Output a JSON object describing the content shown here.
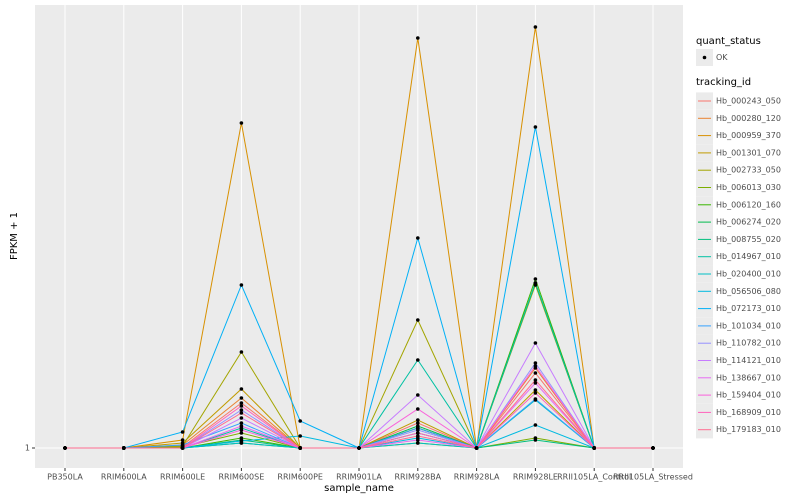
{
  "chart_data": {
    "type": "line",
    "y_label": "FPKM + 1",
    "x_label": "sample_name",
    "categories": [
      "PB350LA",
      "RRIM600LA",
      "RRIM600LE",
      "RRIM600SE",
      "RRIM600PE",
      "RRIM901LA",
      "RRIM928BA",
      "RRIM928LA",
      "RRIM928LE",
      "RRII105LA_Control",
      "RRII105LA_Stressed"
    ],
    "ylim": [
      -1,
      45.3
    ],
    "yticks": [
      1
    ],
    "grid": true,
    "shape_legend": {
      "title": "quant_status",
      "labels": [
        "OK"
      ]
    },
    "color_legend_title": "tracking_id",
    "series": [
      {
        "name": "Hb_000243_050",
        "color": "#F8766D",
        "values": [
          1,
          1,
          1.1,
          5.5,
          1,
          1,
          3.5,
          1,
          8.5,
          1,
          1
        ]
      },
      {
        "name": "Hb_000280_120",
        "color": "#EA8331",
        "values": [
          1,
          1,
          1.3,
          6,
          1,
          1,
          3,
          1,
          9,
          1,
          1
        ]
      },
      {
        "name": "Hb_000959_370",
        "color": "#D89000",
        "values": [
          1,
          1,
          1.8,
          33.5,
          1,
          1,
          42,
          1,
          43.1,
          1,
          1
        ]
      },
      {
        "name": "Hb_001301_070",
        "color": "#C09B00",
        "values": [
          1,
          1,
          1.5,
          6.9,
          1,
          1,
          3.8,
          1,
          6.8,
          1,
          1
        ]
      },
      {
        "name": "Hb_002733_050",
        "color": "#A3A500",
        "values": [
          1,
          1,
          1.2,
          10.6,
          1,
          1,
          13.8,
          1,
          17.3,
          1,
          1
        ]
      },
      {
        "name": "Hb_006013_030",
        "color": "#7CAE00",
        "values": [
          1,
          1,
          1.1,
          2.5,
          1,
          1,
          1.5,
          1,
          2,
          1,
          1
        ]
      },
      {
        "name": "Hb_006120_160",
        "color": "#39B600",
        "values": [
          1,
          1,
          1,
          2,
          1,
          1,
          3,
          1,
          17.9,
          1,
          1
        ]
      },
      {
        "name": "Hb_006274_020",
        "color": "#00BB4E",
        "values": [
          1,
          1,
          1,
          1.5,
          1,
          1,
          3.2,
          1,
          17.5,
          1,
          1
        ]
      },
      {
        "name": "Hb_008755_020",
        "color": "#00BF7D",
        "values": [
          1,
          1,
          1,
          1.8,
          1,
          1,
          2.5,
          1,
          1.8,
          1,
          1
        ]
      },
      {
        "name": "Hb_014967_010",
        "color": "#00C1A3",
        "values": [
          1,
          1,
          1,
          3,
          1,
          1,
          9.8,
          1,
          17.5,
          1,
          1
        ]
      },
      {
        "name": "Hb_020400_010",
        "color": "#00BFC4",
        "values": [
          1,
          1,
          1,
          1.5,
          1,
          1,
          1.5,
          1,
          5.8,
          1,
          1
        ]
      },
      {
        "name": "Hb_056506_080",
        "color": "#00BAE0",
        "values": [
          1,
          1,
          1,
          1.7,
          2.2,
          1,
          2,
          1,
          3.3,
          1,
          1
        ]
      },
      {
        "name": "Hb_072173_010",
        "color": "#00B0F6",
        "values": [
          1,
          1,
          2.6,
          17.3,
          3.7,
          1,
          22,
          1,
          33.1,
          1,
          1
        ]
      },
      {
        "name": "Hb_101034_010",
        "color": "#35A2FF",
        "values": [
          1,
          1,
          1.3,
          3.5,
          1,
          1,
          3,
          1,
          5.9,
          1,
          1
        ]
      },
      {
        "name": "Hb_110782_010",
        "color": "#9590FF",
        "values": [
          1,
          1,
          1,
          4.8,
          1,
          1,
          2.8,
          1,
          9.5,
          1,
          1
        ]
      },
      {
        "name": "Hb_114121_010",
        "color": "#C77CFF",
        "values": [
          1,
          1,
          1,
          4,
          1,
          1,
          6.3,
          1,
          11.5,
          1,
          1
        ]
      },
      {
        "name": "Hb_138667_010",
        "color": "#E76BF3",
        "values": [
          1,
          1,
          1,
          3.2,
          1,
          1,
          1.8,
          1,
          7.5,
          1,
          1
        ]
      },
      {
        "name": "Hb_159404_010",
        "color": "#FA62DB",
        "values": [
          1,
          1,
          1,
          2.8,
          1,
          1,
          4.9,
          1,
          9.2,
          1,
          1
        ]
      },
      {
        "name": "Hb_168909_010",
        "color": "#FF62BC",
        "values": [
          1,
          1,
          1,
          5.2,
          1,
          1,
          2.5,
          1,
          6.5,
          1,
          1
        ]
      },
      {
        "name": "Hb_179183_010",
        "color": "#FF6C91",
        "values": [
          1,
          1,
          1,
          4.5,
          1,
          1,
          2.2,
          1,
          7.8,
          1,
          1
        ]
      }
    ]
  }
}
